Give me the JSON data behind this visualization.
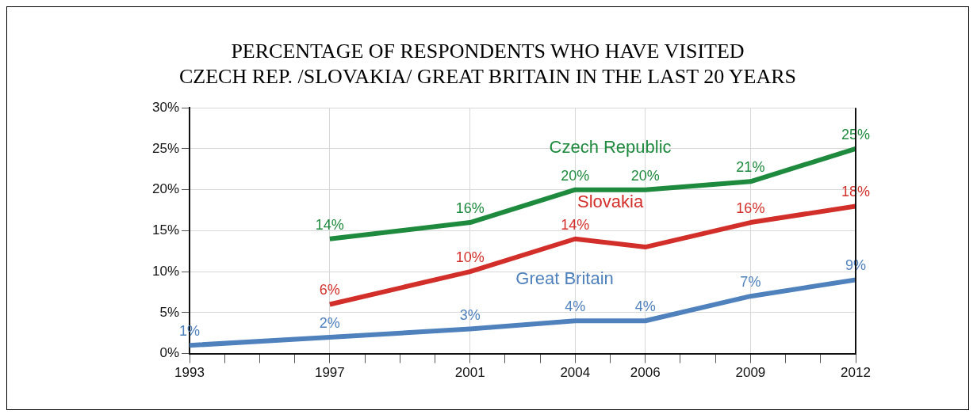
{
  "chart_data": {
    "type": "line",
    "title": "PERCENTAGE OF RESPONDENTS WHO HAVE VISITED\nCZECH REP. /SLOVAKIA/ GREAT BRITAIN IN THE LAST 20 YEARS",
    "x": [
      1993,
      1997,
      2001,
      2004,
      2006,
      2009,
      2012
    ],
    "series": [
      {
        "name": "Czech Republic",
        "color": "#1e8a3e",
        "values": [
          null,
          14,
          16,
          20,
          20,
          21,
          25
        ],
        "value_labels": [
          null,
          "14%",
          "16%",
          "20%",
          "20%",
          "21%",
          "25%"
        ]
      },
      {
        "name": "Slovakia",
        "color": "#d32f2a",
        "values": [
          null,
          6,
          10,
          14,
          13,
          16,
          18
        ],
        "value_labels": [
          null,
          "6%",
          "10%",
          "14%",
          null,
          "16%",
          "18%"
        ]
      },
      {
        "name": "Great Britain",
        "color": "#4f81bd",
        "values": [
          1,
          2,
          3,
          4,
          4,
          7,
          9
        ],
        "value_labels": [
          "1%",
          "2%",
          "3%",
          "4%",
          "4%",
          "7%",
          "9%"
        ]
      }
    ],
    "xlim": [
      1993,
      2012
    ],
    "xticks": [
      1993,
      {
        "value": 1994,
        "label": null
      },
      {
        "value": 1995,
        "label": null
      },
      {
        "value": 1996,
        "label": null
      },
      1997,
      {
        "value": 1998,
        "label": null
      },
      {
        "value": 1999,
        "label": null
      },
      {
        "value": 2000,
        "label": null
      },
      2001,
      {
        "value": 2002,
        "label": null
      },
      {
        "value": 2003,
        "label": null
      },
      2004,
      {
        "value": 2005,
        "label": null
      },
      2006,
      {
        "value": 2007,
        "label": null
      },
      {
        "value": 2008,
        "label": null
      },
      2009,
      {
        "value": 2010,
        "label": null
      },
      {
        "value": 2011,
        "label": null
      },
      2012
    ],
    "ylim": [
      0,
      30
    ],
    "yticks": [
      {
        "value": 0,
        "label": "0%"
      },
      {
        "value": 5,
        "label": "5%"
      },
      {
        "value": 10,
        "label": "10%"
      },
      {
        "value": 15,
        "label": "15%"
      },
      {
        "value": 20,
        "label": "20%"
      },
      {
        "value": 25,
        "label": "25%"
      },
      {
        "value": 30,
        "label": "30%"
      }
    ],
    "grid": true,
    "legend": false,
    "marker": "none",
    "line_style": "solid"
  }
}
